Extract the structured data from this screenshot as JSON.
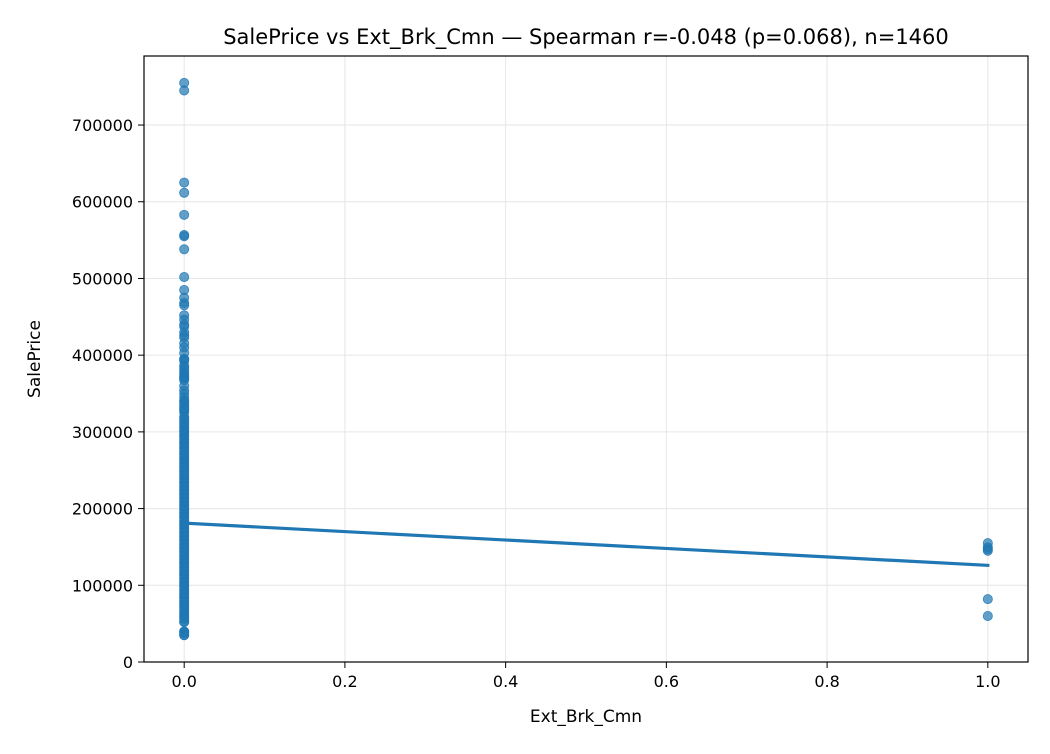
{
  "chart_data": {
    "type": "scatter",
    "title": "SalePrice vs Ext_Brk_Cmn — Spearman r=-0.048 (p=0.068), n=1460",
    "xlabel": "Ext_Brk_Cmn",
    "ylabel": "SalePrice",
    "xlim": [
      -0.05,
      1.05
    ],
    "ylim": [
      0,
      790000
    ],
    "x_ticks": [
      0.0,
      0.2,
      0.4,
      0.6,
      0.8,
      1.0
    ],
    "x_tick_labels": [
      "0.0",
      "0.2",
      "0.4",
      "0.6",
      "0.8",
      "1.0"
    ],
    "y_ticks": [
      0,
      100000,
      200000,
      300000,
      400000,
      500000,
      600000,
      700000
    ],
    "y_tick_labels": [
      "0",
      "100000",
      "200000",
      "300000",
      "400000",
      "500000",
      "600000",
      "700000"
    ],
    "grid": true,
    "point_color": "#1f77b4",
    "line_color": "#1f77b4",
    "points_group0": {
      "x": 0,
      "y": [
        755000,
        745000,
        625000,
        611657,
        582933,
        556581,
        555000,
        538000,
        501837,
        485000,
        475000,
        468000,
        465000,
        451950,
        446261,
        440000,
        437154,
        430000,
        426000,
        423000,
        415298,
        410000,
        402861,
        395192,
        394617,
        392500,
        386250,
        385000,
        381000,
        378500,
        375000,
        372402,
        370878,
        369900,
        367294,
        360000,
        354000,
        350000,
        345000,
        341000,
        340000,
        337500,
        335000,
        332000,
        330000,
        328000,
        325624,
        320000,
        318000,
        315000,
        312500,
        310000,
        307000,
        305000,
        302000,
        300000,
        297000,
        295000,
        293077,
        290000,
        287000,
        285000,
        282922,
        280000,
        278000,
        275000,
        272000,
        270000,
        267000,
        265000,
        262500,
        260000,
        258000,
        255000,
        253293,
        250000,
        248000,
        245500,
        243000,
        240000,
        238000,
        235000,
        233000,
        230000,
        228000,
        225000,
        223000,
        220000,
        218000,
        215000,
        213000,
        210000,
        208000,
        205000,
        203000,
        200000,
        198000,
        195000,
        193000,
        190000,
        188000,
        185000,
        183000,
        180000,
        178000,
        175000,
        173000,
        170000,
        168000,
        165000,
        163000,
        160000,
        158000,
        155000,
        153000,
        150000,
        148000,
        145000,
        143000,
        140000,
        138000,
        135000,
        133000,
        130000,
        128000,
        125000,
        123000,
        120000,
        118000,
        115000,
        113000,
        110000,
        108000,
        105000,
        103000,
        100000,
        98000,
        95000,
        93000,
        90000,
        88000,
        85000,
        83000,
        80000,
        78000,
        75000,
        72500,
        70000,
        67000,
        64500,
        62383,
        60000,
        58500,
        55993,
        52500,
        52000,
        40000,
        39300,
        37900,
        35311,
        34900
      ]
    },
    "points_group1": {
      "x": 1,
      "y": [
        155000,
        149500,
        147000,
        145000,
        82000,
        60000
      ]
    },
    "fit_line": {
      "x": [
        0,
        1
      ],
      "y": [
        181000,
        126000
      ]
    }
  }
}
